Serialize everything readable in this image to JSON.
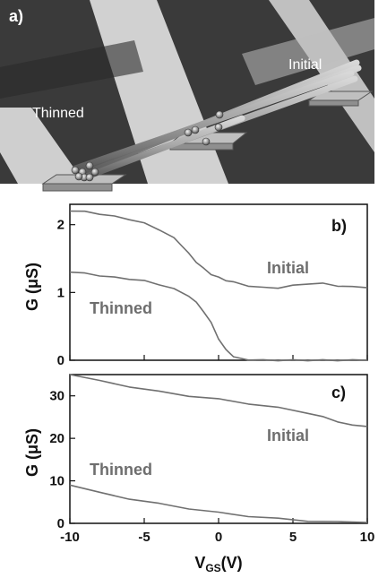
{
  "panel_a": {
    "tag": "a)",
    "label_initial": "Initial",
    "label_thinned": "Thinned"
  },
  "chart_data": [
    {
      "type": "line",
      "panel": "b)",
      "ylabel": "G (μS)",
      "xlim": [
        -10,
        10
      ],
      "ylim": [
        0,
        2.3
      ],
      "yticks": [
        0,
        1,
        2
      ],
      "grid": false,
      "annotations": [
        "Initial",
        "Thinned"
      ],
      "series": [
        {
          "name": "Initial",
          "x": [
            -10,
            -9,
            -8,
            -7,
            -6,
            -5,
            -4,
            -3,
            -2.5,
            -2,
            -1.5,
            -1,
            -0.5,
            0,
            0.5,
            1,
            2,
            3,
            4,
            5,
            6,
            7,
            8,
            9,
            10
          ],
          "y": [
            2.2,
            2.19,
            2.16,
            2.12,
            2.08,
            2.02,
            1.93,
            1.8,
            1.7,
            1.57,
            1.45,
            1.35,
            1.27,
            1.22,
            1.18,
            1.15,
            1.1,
            1.07,
            1.07,
            1.1,
            1.13,
            1.13,
            1.1,
            1.08,
            1.07
          ]
        },
        {
          "name": "Thinned",
          "x": [
            -10,
            -9,
            -8,
            -7,
            -6,
            -5,
            -4,
            -3,
            -2,
            -1.5,
            -1,
            -0.5,
            0,
            0.5,
            1,
            1.5,
            2,
            3,
            4,
            5,
            6,
            7,
            8,
            9,
            10
          ],
          "y": [
            1.3,
            1.28,
            1.25,
            1.22,
            1.2,
            1.17,
            1.12,
            1.05,
            0.95,
            0.85,
            0.72,
            0.55,
            0.32,
            0.15,
            0.06,
            0.02,
            0.01,
            0.0,
            0.0,
            0.0,
            0.0,
            0.0,
            0.0,
            0.0,
            0.0
          ]
        }
      ]
    },
    {
      "type": "line",
      "panel": "c)",
      "ylabel": "G (μS)",
      "xlabel": "V_GS(V)",
      "xlim": [
        -10,
        10
      ],
      "ylim": [
        0,
        35
      ],
      "yticks": [
        0,
        10,
        20,
        30
      ],
      "xticks": [
        -10,
        -5,
        0,
        5,
        10
      ],
      "grid": false,
      "annotations": [
        "Initial",
        "Thinned"
      ],
      "series": [
        {
          "name": "Initial",
          "x": [
            -10,
            -8,
            -6,
            -4,
            -2,
            0,
            2,
            4,
            6,
            7,
            8,
            9,
            10
          ],
          "y": [
            35,
            33.5,
            32.2,
            31,
            30,
            29.2,
            28.2,
            27.2,
            26,
            25,
            24,
            23,
            22.8
          ]
        },
        {
          "name": "Thinned",
          "x": [
            -10,
            -8,
            -6,
            -4,
            -2,
            0,
            2,
            4,
            6,
            8,
            10
          ],
          "y": [
            9,
            7.2,
            5.8,
            4.6,
            3.5,
            2.5,
            1.7,
            1.1,
            0.6,
            0.3,
            0.2
          ]
        }
      ]
    }
  ],
  "axes": {
    "xlabel_main": "V",
    "xlabel_sub": "GS",
    "xlabel_unit": "(V)",
    "ylabel_b": "G (μS)",
    "ylabel_c": "G (μS)"
  }
}
